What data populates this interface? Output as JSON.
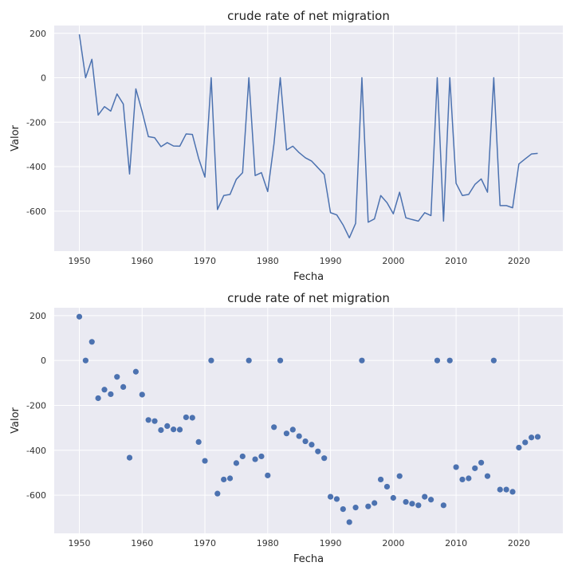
{
  "chart_data": [
    {
      "type": "line",
      "title": "crude rate of net migration",
      "xlabel": "Fecha",
      "ylabel": "Valor",
      "xlim": [
        1946,
        2027
      ],
      "ylim": [
        -780,
        235
      ],
      "xticks": [
        1950,
        1960,
        1970,
        1980,
        1990,
        2000,
        2010,
        2020
      ],
      "yticks": [
        -600,
        -400,
        -200,
        0,
        200
      ],
      "grid": true,
      "color": "#4c72b0",
      "x": [
        1950,
        1951,
        1952,
        1953,
        1954,
        1955,
        1956,
        1957,
        1958,
        1959,
        1960,
        1961,
        1962,
        1963,
        1964,
        1965,
        1966,
        1967,
        1968,
        1969,
        1970,
        1971,
        1972,
        1973,
        1974,
        1975,
        1976,
        1977,
        1978,
        1979,
        1980,
        1981,
        1982,
        1983,
        1984,
        1985,
        1986,
        1987,
        1988,
        1989,
        1990,
        1991,
        1992,
        1993,
        1994,
        1995,
        1996,
        1997,
        1998,
        1999,
        2000,
        2001,
        2002,
        2003,
        2004,
        2005,
        2006,
        2007,
        2008,
        2009,
        2010,
        2011,
        2012,
        2013,
        2014,
        2015,
        2016,
        2017,
        2018,
        2019,
        2020,
        2021,
        2022,
        2023
      ],
      "y": [
        195,
        0,
        83,
        -168,
        -130,
        -150,
        -73,
        -118,
        -433,
        -50,
        -152,
        -265,
        -270,
        -310,
        -292,
        -307,
        -308,
        -253,
        -255,
        -363,
        -447,
        0,
        -593,
        -530,
        -525,
        -457,
        -427,
        0,
        -440,
        -427,
        -512,
        -297,
        0,
        -325,
        -308,
        -337,
        -360,
        -375,
        -405,
        -435,
        -607,
        -617,
        -662,
        -720,
        -655,
        0,
        -650,
        -635,
        -530,
        -562,
        -612,
        -515,
        -630,
        -638,
        -645,
        -607,
        -620,
        0,
        -645,
        0,
        -475,
        -530,
        -525,
        -480,
        -455,
        -515,
        0,
        -575,
        -575,
        -585,
        -388,
        -365,
        -343,
        -340
      ]
    },
    {
      "type": "scatter",
      "title": "crude rate of net migration",
      "xlabel": "Fecha",
      "ylabel": "Valor",
      "xlim": [
        1946,
        2027
      ],
      "ylim": [
        -770,
        235
      ],
      "xticks": [
        1950,
        1960,
        1970,
        1980,
        1990,
        2000,
        2010,
        2020
      ],
      "yticks": [
        -600,
        -400,
        -200,
        0,
        200
      ],
      "grid": true,
      "color": "#4c72b0",
      "x": [
        1950,
        1951,
        1952,
        1953,
        1954,
        1955,
        1956,
        1957,
        1958,
        1959,
        1960,
        1961,
        1962,
        1963,
        1964,
        1965,
        1966,
        1967,
        1968,
        1969,
        1970,
        1971,
        1972,
        1973,
        1974,
        1975,
        1976,
        1977,
        1978,
        1979,
        1980,
        1981,
        1982,
        1983,
        1984,
        1985,
        1986,
        1987,
        1988,
        1989,
        1990,
        1991,
        1992,
        1993,
        1994,
        1995,
        1996,
        1997,
        1998,
        1999,
        2000,
        2001,
        2002,
        2003,
        2004,
        2005,
        2006,
        2007,
        2008,
        2009,
        2010,
        2011,
        2012,
        2013,
        2014,
        2015,
        2016,
        2017,
        2018,
        2019,
        2020,
        2021,
        2022,
        2023
      ],
      "y": [
        195,
        0,
        83,
        -168,
        -130,
        -150,
        -73,
        -118,
        -433,
        -50,
        -152,
        -265,
        -270,
        -310,
        -292,
        -307,
        -308,
        -253,
        -255,
        -363,
        -447,
        0,
        -593,
        -530,
        -525,
        -457,
        -427,
        0,
        -440,
        -427,
        -512,
        -297,
        0,
        -325,
        -308,
        -337,
        -360,
        -375,
        -405,
        -435,
        -607,
        -617,
        -662,
        -720,
        -655,
        0,
        -650,
        -635,
        -530,
        -562,
        -612,
        -515,
        -630,
        -638,
        -645,
        -607,
        -620,
        0,
        -645,
        0,
        -475,
        -530,
        -525,
        -480,
        -455,
        -515,
        0,
        -575,
        -575,
        -585,
        -388,
        -365,
        -343,
        -340
      ]
    }
  ]
}
